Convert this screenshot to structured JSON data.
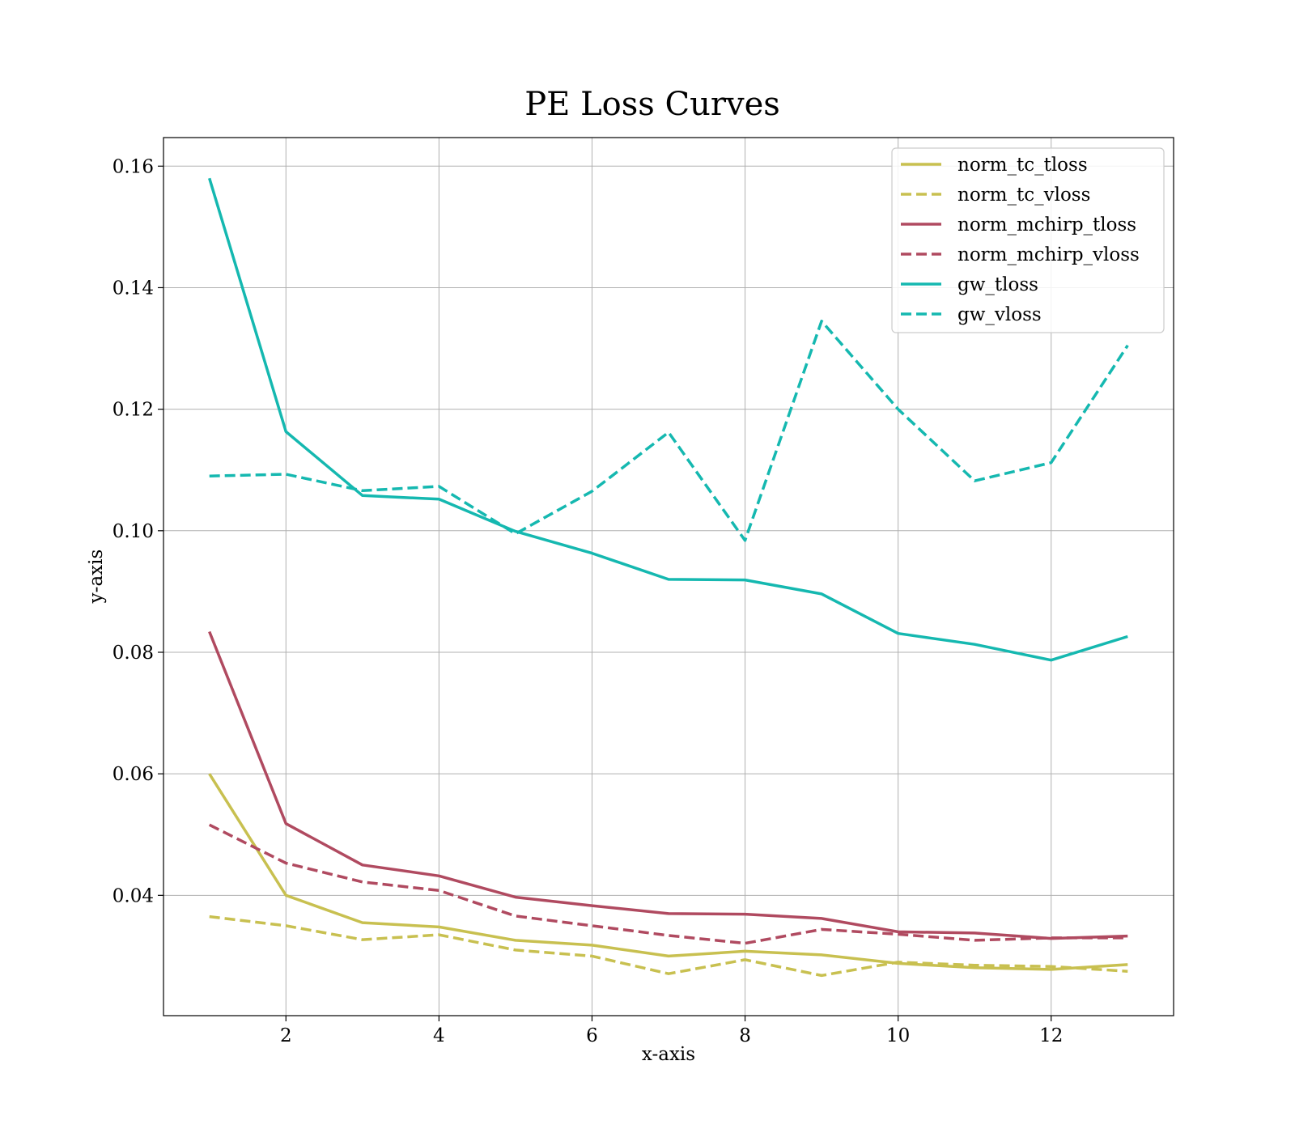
{
  "chart_data": {
    "type": "line",
    "title": "PE Loss Curves",
    "xlabel": "x-axis",
    "ylabel": "y-axis",
    "xlim": [
      0.4,
      13.6
    ],
    "ylim": [
      0.0202,
      0.1647
    ],
    "xticks": [
      2,
      4,
      6,
      8,
      10,
      12
    ],
    "yticks": [
      0.04,
      0.06,
      0.08,
      0.1,
      0.12,
      0.14,
      0.16
    ],
    "ytick_labels": [
      "0.04",
      "0.06",
      "0.08",
      "0.10",
      "0.12",
      "0.14",
      "0.16"
    ],
    "grid": true,
    "legend_position": "top-right",
    "x": [
      1,
      2,
      3,
      4,
      5,
      6,
      7,
      8,
      9,
      10,
      11,
      12,
      13
    ],
    "series": [
      {
        "name": "norm_tc_tloss",
        "color": "#c8c050",
        "dashed": false,
        "values": [
          0.06,
          0.04,
          0.0355,
          0.0348,
          0.0326,
          0.0318,
          0.03,
          0.0308,
          0.0302,
          0.0288,
          0.0281,
          0.0278,
          0.0286
        ]
      },
      {
        "name": "norm_tc_vloss",
        "color": "#c8c050",
        "dashed": true,
        "values": [
          0.0365,
          0.035,
          0.0327,
          0.0335,
          0.031,
          0.03,
          0.0271,
          0.0294,
          0.0268,
          0.029,
          0.0285,
          0.0283,
          0.0275
        ]
      },
      {
        "name": "norm_mchirp_tloss",
        "color": "#b04a60",
        "dashed": false,
        "values": [
          0.0834,
          0.0518,
          0.045,
          0.0432,
          0.0397,
          0.0383,
          0.037,
          0.0369,
          0.0362,
          0.034,
          0.0338,
          0.0329,
          0.0333
        ]
      },
      {
        "name": "norm_mchirp_vloss",
        "color": "#b04a60",
        "dashed": true,
        "values": [
          0.0516,
          0.0453,
          0.0422,
          0.0408,
          0.0366,
          0.035,
          0.0334,
          0.0321,
          0.0344,
          0.0336,
          0.0326,
          0.033,
          0.033
        ]
      },
      {
        "name": "gw_tloss",
        "color": "#15b8b0",
        "dashed": false,
        "values": [
          0.158,
          0.1163,
          0.1058,
          0.1052,
          0.0999,
          0.0963,
          0.092,
          0.0919,
          0.0896,
          0.0831,
          0.0813,
          0.0787,
          0.0826
        ]
      },
      {
        "name": "gw_vloss",
        "color": "#15b8b0",
        "dashed": true,
        "values": [
          0.109,
          0.1093,
          0.1066,
          0.1073,
          0.0995,
          0.1065,
          0.1162,
          0.0984,
          0.1345,
          0.12,
          0.1082,
          0.1112,
          0.1305
        ]
      }
    ]
  }
}
